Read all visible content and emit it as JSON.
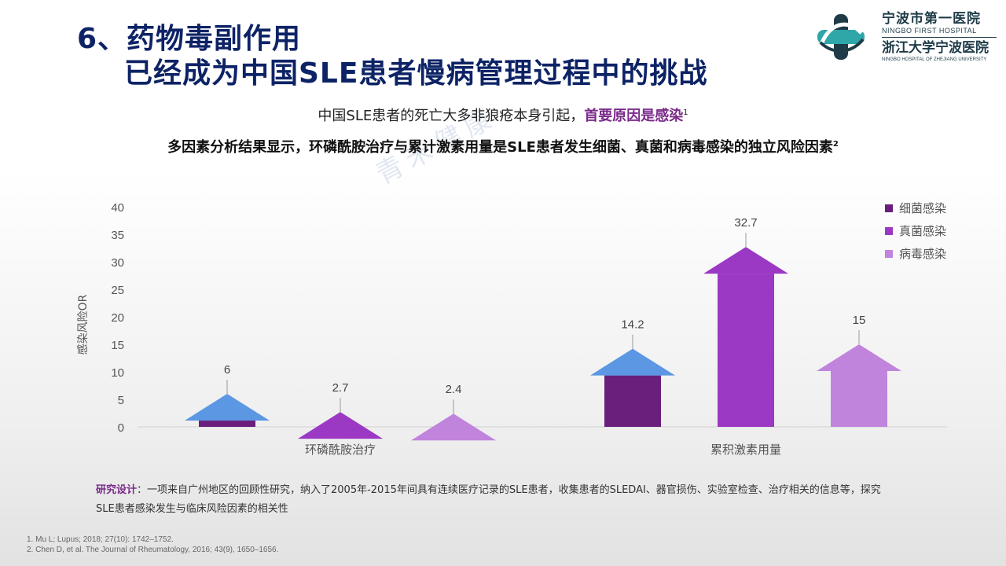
{
  "header": {
    "title_line1": "6、药物毒副作用",
    "title_line2": "已经成为中国SLE患者慢病管理过程中的挑战"
  },
  "logo": {
    "cn1": "宁波市第一医院",
    "en1": "NINGBO FIRST HOSPITAL",
    "cn2": "浙江大学宁波医院",
    "en2": "NINGBO HOSPITAL OF ZHEJIANG UNIVERSITY",
    "color": "#1e3b47",
    "accent": "#2fa6a8"
  },
  "watermark": "青禾健康",
  "subtitle1": {
    "text": "中国SLE患者的死亡大多非狼疮本身引起，",
    "emphasis": "首要原因是感染",
    "sup": "1"
  },
  "subtitle2": {
    "text": "多因素分析结果显示，环磷酰胺治疗与累计激素用量是SLE患者发生细菌、真菌和病毒感染的独立风险因素",
    "sup": "2"
  },
  "chart_data": {
    "type": "bar",
    "categories": [
      "环磷酰胺治疗",
      "累积激素用量"
    ],
    "series": [
      {
        "name": "细菌感染",
        "values": [
          6,
          14.2
        ],
        "color": "#6a1f7c"
      },
      {
        "name": "真菌感染",
        "values": [
          2.7,
          32.7
        ],
        "color": "#9b38c4"
      },
      {
        "name": "病毒感染",
        "values": [
          2.4,
          15
        ],
        "color": "#c184dc"
      }
    ],
    "value_labels": [
      "6",
      "2.7",
      "2.4",
      "14.2",
      "32.7",
      "15"
    ],
    "arrow_head_color": "#5b97e3",
    "ylabel": "感染风险OR",
    "ylim": [
      0,
      40
    ],
    "yticks": [
      0,
      5,
      10,
      15,
      20,
      25,
      30,
      35,
      40
    ],
    "grid": false,
    "legend_position": "right"
  },
  "study_design": {
    "label": "研究设计",
    "text": "：一项来自广州地区的回顾性研究，纳入了2005年-2015年间具有连续医疗记录的SLE患者，收集患者的SLEDAI、器官损伤、实验室检查、治疗相关的信息等，探究SLE患者感染发生与临床风险因素的相关性"
  },
  "references": [
    "1. Mu L; Lupus; 2018; 27(10): 1742–1752.",
    "2. Chen D, et al. The Journal of Rheumatology, 2016; 43(9), 1650–1656."
  ]
}
